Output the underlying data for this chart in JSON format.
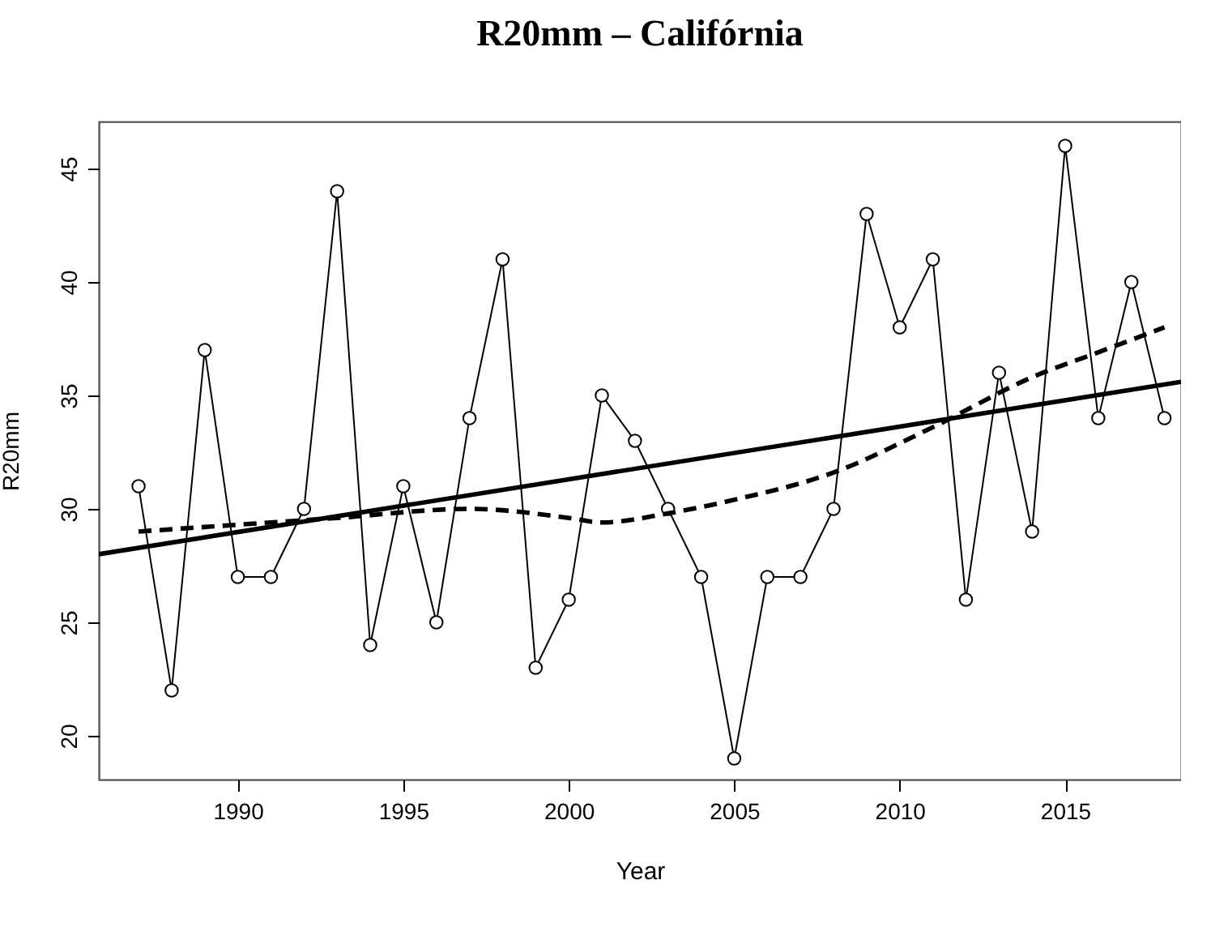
{
  "chart_data": {
    "type": "line",
    "title": "R20mm – Califórnia",
    "xlabel": "Year",
    "ylabel": "R20mm",
    "xlim": [
      1985.8,
      2018.5
    ],
    "xticks": [
      1990,
      1995,
      2000,
      2005,
      2010,
      2015
    ],
    "ylim": [
      18.07,
      47.07
    ],
    "yticks": [
      20,
      25,
      30,
      35,
      40,
      45
    ],
    "grid": false,
    "series": [
      {
        "color": "#000000",
        "marker": "circle",
        "line_style": "solid",
        "x": [
          1987,
          1988,
          1989,
          1990,
          1991,
          1992,
          1993,
          1994,
          1995,
          1996,
          1997,
          1998,
          1999,
          2000,
          2001,
          2002,
          2003,
          2004,
          2005,
          2006,
          2007,
          2008,
          2009,
          2010,
          2011,
          2012,
          2013,
          2014,
          2015,
          2016,
          2017,
          2018
        ],
        "values": [
          31,
          22,
          37,
          27,
          27,
          30,
          44,
          24,
          31,
          25,
          34,
          41,
          23,
          26,
          35,
          33,
          30,
          27,
          19,
          27,
          27,
          30,
          43,
          38,
          41,
          26,
          36,
          29,
          46,
          34,
          40,
          34
        ]
      },
      {
        "color": "#000000",
        "marker": "none",
        "line_style": "solid",
        "x": [
          1985.8,
          2018.5
        ],
        "values": [
          28.0,
          35.6
        ]
      },
      {
        "color": "#000000",
        "marker": "none",
        "line_style": "dashed",
        "x": [
          1987,
          1990,
          1993,
          1997,
          2000,
          2001,
          2003,
          2005,
          2008,
          2011,
          2014,
          2016,
          2018
        ],
        "values": [
          29.0,
          29.3,
          29.6,
          30.0,
          29.6,
          29.4,
          29.8,
          30.4,
          31.6,
          33.6,
          35.8,
          36.9,
          38.0
        ]
      }
    ]
  }
}
